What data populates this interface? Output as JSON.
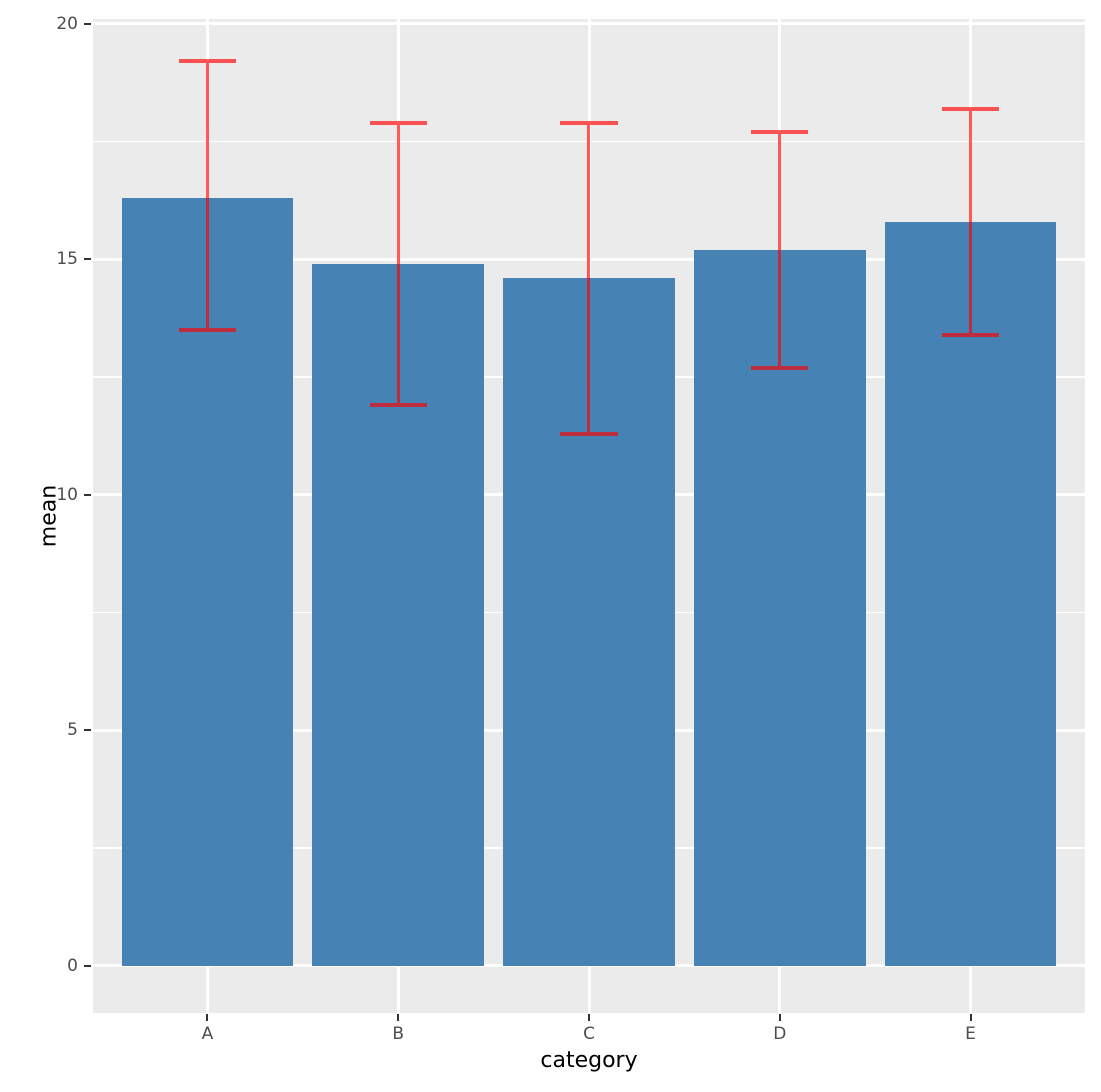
{
  "chart_data": {
    "type": "bar",
    "title": "",
    "xlabel": "category",
    "ylabel": "mean",
    "categories": [
      "A",
      "B",
      "C",
      "D",
      "E"
    ],
    "values": [
      16.3,
      14.9,
      14.6,
      15.2,
      15.8
    ],
    "error_bars": {
      "lower": [
        13.5,
        11.9,
        11.3,
        12.7,
        13.4
      ],
      "upper": [
        19.2,
        17.9,
        17.9,
        17.7,
        18.2
      ]
    },
    "ylim": [
      -1,
      20.1
    ],
    "yticks": [
      0,
      5,
      10,
      15,
      20
    ],
    "yticks_minor": [
      2.5,
      7.5,
      12.5,
      17.5
    ],
    "grid": true,
    "legend": "none",
    "bar_width_fraction": 0.9,
    "error_cap_fraction": 0.3,
    "colors": {
      "bar_fill": "#4682B4",
      "error_bar": "#FF0000",
      "error_bar_alpha": 0.65,
      "panel_background": "#EBEBEB",
      "grid_major": "#FFFFFF",
      "grid_minor": "#FFFFFF",
      "tick_label": "#4D4D4D",
      "tick_mark": "#333333",
      "axis_title": "#000000"
    }
  }
}
